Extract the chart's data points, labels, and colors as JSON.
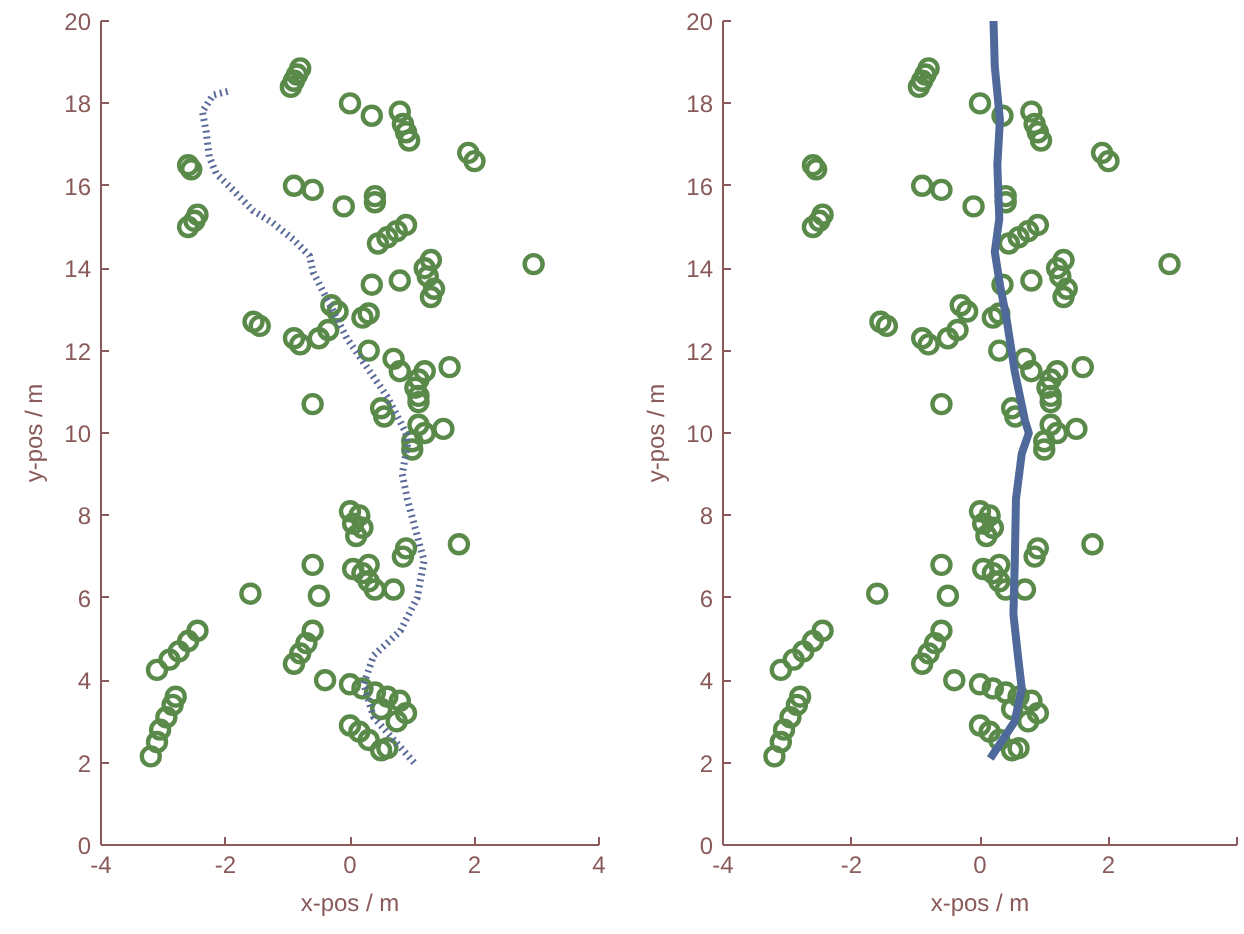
{
  "chart_data": [
    {
      "type": "scatter",
      "xlabel": "x-pos / m",
      "ylabel": "y-pos / m",
      "xlim": [
        -4,
        4
      ],
      "ylim": [
        0,
        20
      ],
      "xticks": [
        -4,
        -2,
        0,
        2,
        4
      ],
      "yticks": [
        0,
        2,
        4,
        6,
        8,
        10,
        12,
        14,
        16,
        18,
        20
      ],
      "grid": false,
      "series": [
        {
          "marker": "circle",
          "color": "#5a8a4a",
          "x": [
            -0.95,
            -0.9,
            -0.85,
            -0.8,
            0.0,
            0.35,
            0.8,
            0.85,
            0.9,
            0.95,
            1.9,
            2.0,
            -2.6,
            -2.55,
            -0.9,
            -0.6,
            -0.1,
            0.4,
            0.4,
            -2.6,
            -2.5,
            -2.45,
            0.45,
            0.6,
            0.75,
            0.9,
            1.3,
            1.2,
            1.25,
            1.35,
            1.3,
            2.95,
            0.35,
            0.8,
            -1.55,
            -1.45,
            -0.3,
            -0.2,
            0.2,
            0.3,
            -0.9,
            -0.8,
            -0.5,
            -0.35,
            0.3,
            0.7,
            0.8,
            1.2,
            1.6,
            1.1,
            1.05,
            1.1,
            1.1,
            -0.6,
            0.5,
            0.55,
            1.1,
            1.2,
            1.0,
            1.0,
            1.5,
            0.0,
            0.15,
            0.05,
            0.1,
            0.2,
            1.75,
            0.9,
            0.85,
            -0.6,
            0.05,
            0.2,
            0.3,
            0.4,
            0.7,
            0.3,
            -1.6,
            -0.5,
            -0.9,
            -0.8,
            -0.7,
            -0.6,
            -3.1,
            -2.9,
            -2.75,
            -2.6,
            -2.45,
            -3.2,
            -3.1,
            -3.05,
            -2.95,
            -2.85,
            -2.8,
            -0.4,
            0.0,
            0.2,
            0.4,
            0.0,
            0.15,
            0.3,
            0.5,
            0.6,
            0.8,
            0.9,
            0.75,
            0.5,
            0.6
          ],
          "values": [
            18.4,
            18.55,
            18.7,
            18.85,
            18.0,
            17.7,
            17.8,
            17.5,
            17.3,
            17.1,
            16.8,
            16.6,
            16.5,
            16.4,
            16.0,
            15.9,
            15.5,
            15.75,
            15.6,
            15.0,
            15.15,
            15.3,
            14.6,
            14.75,
            14.9,
            15.05,
            14.2,
            14.0,
            13.8,
            13.5,
            13.3,
            14.1,
            13.6,
            13.7,
            12.7,
            12.6,
            13.1,
            12.95,
            12.8,
            12.9,
            12.3,
            12.15,
            12.3,
            12.5,
            12.0,
            11.8,
            11.5,
            11.5,
            11.6,
            11.3,
            11.1,
            10.9,
            10.75,
            10.7,
            10.6,
            10.4,
            10.2,
            10.0,
            9.8,
            9.6,
            10.1,
            8.1,
            8.0,
            7.8,
            7.5,
            7.7,
            7.3,
            7.2,
            7.0,
            6.8,
            6.7,
            6.6,
            6.4,
            6.2,
            6.2,
            6.8,
            6.1,
            6.05,
            4.4,
            4.65,
            4.9,
            5.2,
            4.25,
            4.5,
            4.7,
            4.95,
            5.2,
            2.15,
            2.5,
            2.8,
            3.1,
            3.4,
            3.6,
            4.0,
            3.9,
            3.8,
            3.7,
            2.9,
            2.75,
            2.55,
            2.3,
            2.35,
            3.5,
            3.2,
            3.0,
            3.3,
            3.6
          ]
        },
        {
          "type": "line",
          "line_style": "dotted",
          "color": "#5b6b9a",
          "x": [
            1.03,
            0.38,
            0.22,
            0.38,
            0.81,
            1.08,
            1.19,
            1.08,
            0.92,
            0.84,
            0.92,
            0.9,
            0.59,
            0.27,
            -0.05,
            -0.32,
            -0.59,
            -0.65,
            -0.91,
            -1.24,
            -1.56,
            -1.88,
            -2.15,
            -2.26,
            -2.31,
            -2.37,
            -2.2,
            -1.94
          ],
          "values": [
            2.0,
            3.1,
            3.9,
            4.6,
            5.2,
            6.0,
            6.9,
            7.5,
            8.4,
            9.0,
            9.7,
            10.0,
            10.9,
            11.6,
            12.3,
            13.1,
            13.9,
            14.3,
            14.7,
            15.1,
            15.4,
            15.9,
            16.3,
            16.7,
            17.3,
            17.8,
            18.2,
            18.3
          ]
        }
      ]
    },
    {
      "type": "scatter",
      "xlabel": "x-pos / m",
      "ylabel": "y-pos / m",
      "xlim": [
        -4,
        4
      ],
      "ylim": [
        0,
        20
      ],
      "xticks": [
        -4,
        -2,
        0,
        2,
        {
          "value": 4,
          "label": null
        }
      ],
      "yticks": [
        0,
        2,
        4,
        6,
        8,
        10,
        12,
        14,
        16,
        18,
        20
      ],
      "grid": false,
      "series": [
        {
          "marker": "circle",
          "color": "#5a8a4a",
          "x": [
            -0.95,
            -0.9,
            -0.85,
            -0.8,
            0.0,
            0.35,
            0.8,
            0.85,
            0.9,
            0.95,
            1.9,
            2.0,
            -2.6,
            -2.55,
            -0.9,
            -0.6,
            -0.1,
            0.4,
            0.4,
            -2.6,
            -2.5,
            -2.45,
            0.45,
            0.6,
            0.75,
            0.9,
            1.3,
            1.2,
            1.25,
            1.35,
            1.3,
            2.95,
            0.35,
            0.8,
            -1.55,
            -1.45,
            -0.3,
            -0.2,
            0.2,
            0.3,
            -0.9,
            -0.8,
            -0.5,
            -0.35,
            0.3,
            0.7,
            0.8,
            1.2,
            1.6,
            1.1,
            1.05,
            1.1,
            1.1,
            -0.6,
            0.5,
            0.55,
            1.1,
            1.2,
            1.0,
            1.0,
            1.5,
            0.0,
            0.15,
            0.05,
            0.1,
            0.2,
            1.75,
            0.9,
            0.85,
            -0.6,
            0.05,
            0.2,
            0.3,
            0.4,
            0.7,
            0.3,
            -1.6,
            -0.5,
            -0.9,
            -0.8,
            -0.7,
            -0.6,
            -3.1,
            -2.9,
            -2.75,
            -2.6,
            -2.45,
            -3.2,
            -3.1,
            -3.05,
            -2.95,
            -2.85,
            -2.8,
            -0.4,
            0.0,
            0.2,
            0.4,
            0.0,
            0.15,
            0.3,
            0.5,
            0.6,
            0.8,
            0.9,
            0.75,
            0.5,
            0.6
          ],
          "values": [
            18.4,
            18.55,
            18.7,
            18.85,
            18.0,
            17.7,
            17.8,
            17.5,
            17.3,
            17.1,
            16.8,
            16.6,
            16.5,
            16.4,
            16.0,
            15.9,
            15.5,
            15.75,
            15.6,
            15.0,
            15.15,
            15.3,
            14.6,
            14.75,
            14.9,
            15.05,
            14.2,
            14.0,
            13.8,
            13.5,
            13.3,
            14.1,
            13.6,
            13.7,
            12.7,
            12.6,
            13.1,
            12.95,
            12.8,
            12.9,
            12.3,
            12.15,
            12.3,
            12.5,
            12.0,
            11.8,
            11.5,
            11.5,
            11.6,
            11.3,
            11.1,
            10.9,
            10.75,
            10.7,
            10.6,
            10.4,
            10.2,
            10.0,
            9.8,
            9.6,
            10.1,
            8.1,
            8.0,
            7.8,
            7.5,
            7.7,
            7.3,
            7.2,
            7.0,
            6.8,
            6.7,
            6.6,
            6.4,
            6.2,
            6.2,
            6.8,
            6.1,
            6.05,
            4.4,
            4.65,
            4.9,
            5.2,
            4.25,
            4.5,
            4.7,
            4.95,
            5.2,
            2.15,
            2.5,
            2.8,
            3.1,
            3.4,
            3.6,
            4.0,
            3.9,
            3.8,
            3.7,
            2.9,
            2.75,
            2.55,
            2.3,
            2.35,
            3.5,
            3.2,
            3.0,
            3.3,
            3.6
          ]
        },
        {
          "type": "line",
          "line_style": "solid",
          "color": "#4f6a9a",
          "x": [
            0.16,
            0.54,
            0.65,
            0.59,
            0.52,
            0.54,
            0.56,
            0.65,
            0.76,
            0.7,
            0.54,
            0.41,
            0.31,
            0.23,
            0.3,
            0.27,
            0.31,
            0.23,
            0.21
          ],
          "values": [
            2.1,
            3.0,
            3.8,
            4.6,
            5.6,
            6.8,
            8.4,
            9.5,
            10.0,
            10.3,
            11.5,
            12.8,
            13.6,
            14.4,
            15.2,
            16.5,
            17.6,
            18.9,
            20.0
          ]
        }
      ]
    }
  ]
}
